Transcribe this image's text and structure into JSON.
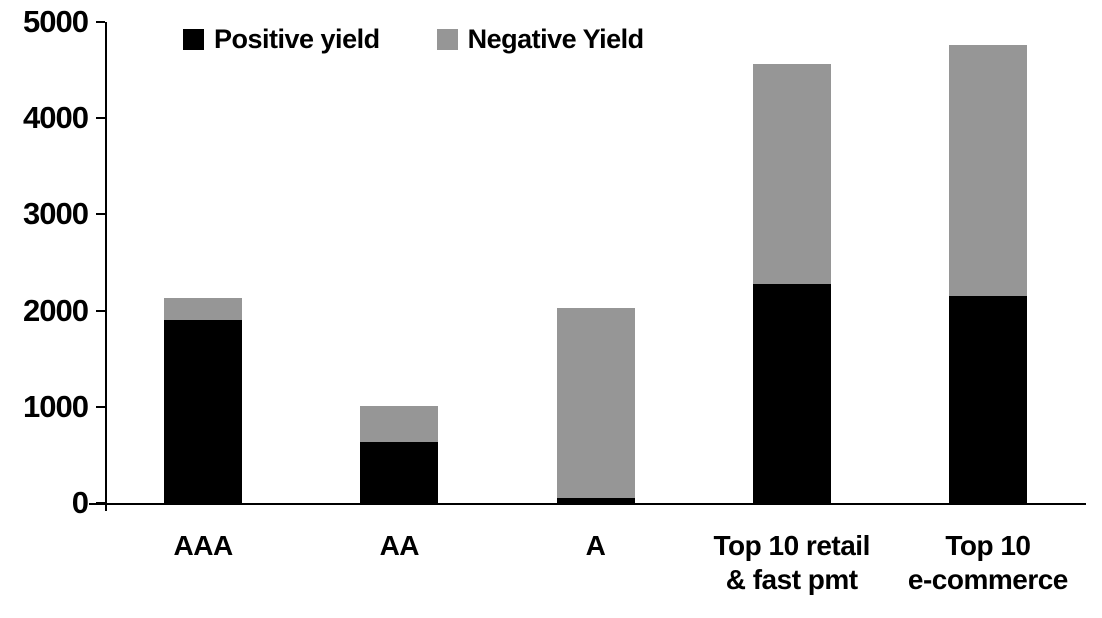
{
  "chart_data": {
    "type": "bar",
    "stacked": true,
    "title": "",
    "xlabel": "",
    "ylabel": "",
    "categories": [
      "AAA",
      "AA",
      "A",
      "Top 10 retail\n& fast pmt",
      "Top 10\ne-commerce"
    ],
    "series": [
      {
        "name": "Positive yield",
        "color": "#000000",
        "values": [
          1900,
          630,
          50,
          2280,
          2150
        ]
      },
      {
        "name": "Negative Yield",
        "color": "#969696",
        "values": [
          230,
          380,
          1980,
          2280,
          2610
        ]
      }
    ],
    "totals": [
      2130,
      1010,
      2030,
      4560,
      4760
    ],
    "ylim": [
      0,
      5000
    ],
    "yticks": [
      0,
      1000,
      2000,
      3000,
      4000,
      5000
    ],
    "grid": false,
    "legend_position": "top-inside",
    "axis_color": "#000000",
    "background_color": "#ffffff"
  }
}
